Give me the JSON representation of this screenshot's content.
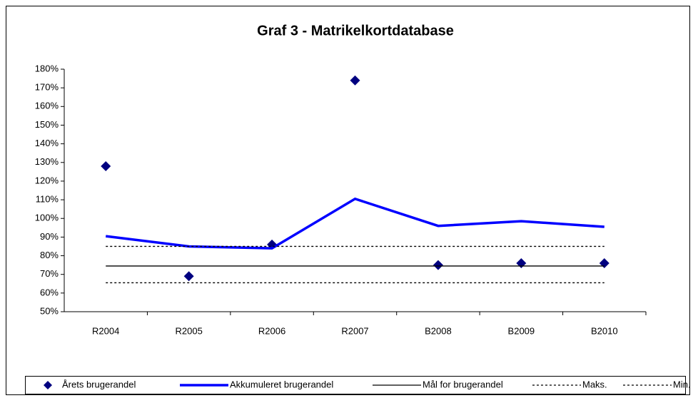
{
  "chart_data": {
    "type": "line",
    "title": "Graf 3 - Matrikelkortdatabase",
    "categories": [
      "R2004",
      "R2005",
      "R2006",
      "R2007",
      "B2008",
      "B2009",
      "B2010"
    ],
    "ylim": [
      50,
      180
    ],
    "yticks": [
      {
        "value": 50,
        "label": "50%"
      },
      {
        "value": 60,
        "label": "60%"
      },
      {
        "value": 70,
        "label": "70%"
      },
      {
        "value": 80,
        "label": "80%"
      },
      {
        "value": 90,
        "label": "90%"
      },
      {
        "value": 100,
        "label": "100%"
      },
      {
        "value": 110,
        "label": "110%"
      },
      {
        "value": 120,
        "label": "120%"
      },
      {
        "value": 130,
        "label": "130%"
      },
      {
        "value": 140,
        "label": "140%"
      },
      {
        "value": 150,
        "label": "150%"
      },
      {
        "value": 160,
        "label": "160%"
      },
      {
        "value": 170,
        "label": "170%"
      },
      {
        "value": 180,
        "label": "180%"
      }
    ],
    "series": [
      {
        "name": "Årets brugerandel",
        "color": "#000080",
        "style": "marker",
        "values": [
          128,
          69,
          86,
          174,
          75,
          76,
          76
        ]
      },
      {
        "name": "Akkumuleret brugerandel",
        "color": "#0000ff",
        "style": "thick",
        "values": [
          90.5,
          85,
          84,
          110.5,
          96,
          98.5,
          95.5
        ]
      },
      {
        "name": "Mål for brugerandel",
        "color": "#000000",
        "style": "solid",
        "values": [
          74.5,
          74.5,
          74.5,
          74.5,
          74.5,
          74.5,
          74.5
        ]
      },
      {
        "name": "Maks.",
        "color": "#000000",
        "style": "dotted",
        "values": [
          85,
          85,
          85,
          85,
          85,
          85,
          85
        ]
      },
      {
        "name": "Min.",
        "color": "#000000",
        "style": "dotted",
        "values": [
          65.5,
          65.5,
          65.5,
          65.5,
          65.5,
          65.5,
          65.5
        ]
      }
    ]
  }
}
